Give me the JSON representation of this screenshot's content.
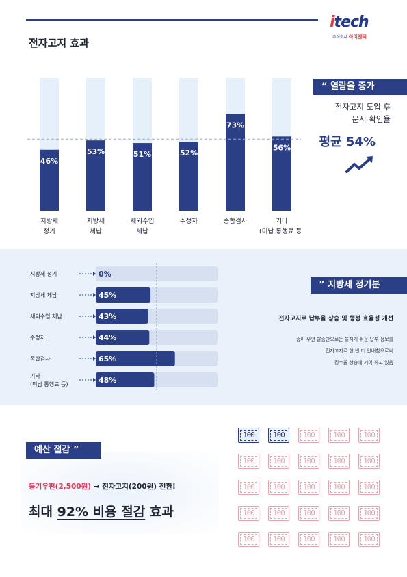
{
  "logo": {
    "word_i": "i",
    "word_rest": "tech",
    "sub_small": "주식회사",
    "sub_name": "아이엔텍"
  },
  "section1": {
    "title": "전자고지 효과",
    "tag": "“ 열람율 증가",
    "note_lines": [
      "전자고지 도입 후",
      "문서 확인율"
    ],
    "average": "평균 54%"
  },
  "section2": {
    "tag": "” 지방세 정기분",
    "subtitle": "전자고지로 납부율 상승 및 행정 효율성 개선",
    "note_lines": [
      "종이 우편 발송만으로는 놓치기 쉬운 납부 정보를",
      "전자고지로 한 번 더 안내함으로써",
      "징수율 상승에 기여 하고 있음"
    ]
  },
  "section3": {
    "tag": "예산 절감 ”",
    "line1_red": "등기우편(2,500원)",
    "line1_arrow": " → ",
    "line1_rest": "전자고지(200원) 전환!",
    "line2_a": "최대 ",
    "line2_u": "92% 비용 절감",
    "line2_b": " 효과",
    "stamp_label": "100",
    "stamp_total": 25,
    "stamp_highlighted": 2
  },
  "chart_data": [
    {
      "type": "bar",
      "categories": [
        [
          "지방세",
          "정기"
        ],
        [
          "지방세",
          "체납"
        ],
        [
          "세외수입",
          "체납"
        ],
        [
          "주정차"
        ],
        [
          "종합검사"
        ],
        [
          "기타",
          "(미납 통행료 등)"
        ]
      ],
      "values": [
        46,
        53,
        51,
        52,
        73,
        56
      ],
      "labels": [
        "46%",
        "53%",
        "51%",
        "52%",
        "73%",
        "56%"
      ],
      "reference_line": 54,
      "ylim": [
        0,
        100
      ],
      "colors": {
        "bar": "#2b3f86",
        "track": "#e6f0fa",
        "reference": "#9aa6cf"
      }
    },
    {
      "type": "bar",
      "orientation": "horizontal",
      "categories": [
        [
          "지방세 정기"
        ],
        [
          "지방세 체납"
        ],
        [
          "세외수입 체납"
        ],
        [
          "주정차"
        ],
        [
          "종합검사"
        ],
        [
          "기타",
          "(미납 통행료 등)"
        ]
      ],
      "values": [
        0,
        45,
        43,
        44,
        65,
        48
      ],
      "labels": [
        "0%",
        "45%",
        "43%",
        "44%",
        "65%",
        "48%"
      ],
      "reference_line": 50,
      "xlim": [
        0,
        100
      ],
      "colors": {
        "bar": "#2b3f86",
        "track": "#d6e0f0",
        "reference": "#8b97c4"
      }
    }
  ]
}
